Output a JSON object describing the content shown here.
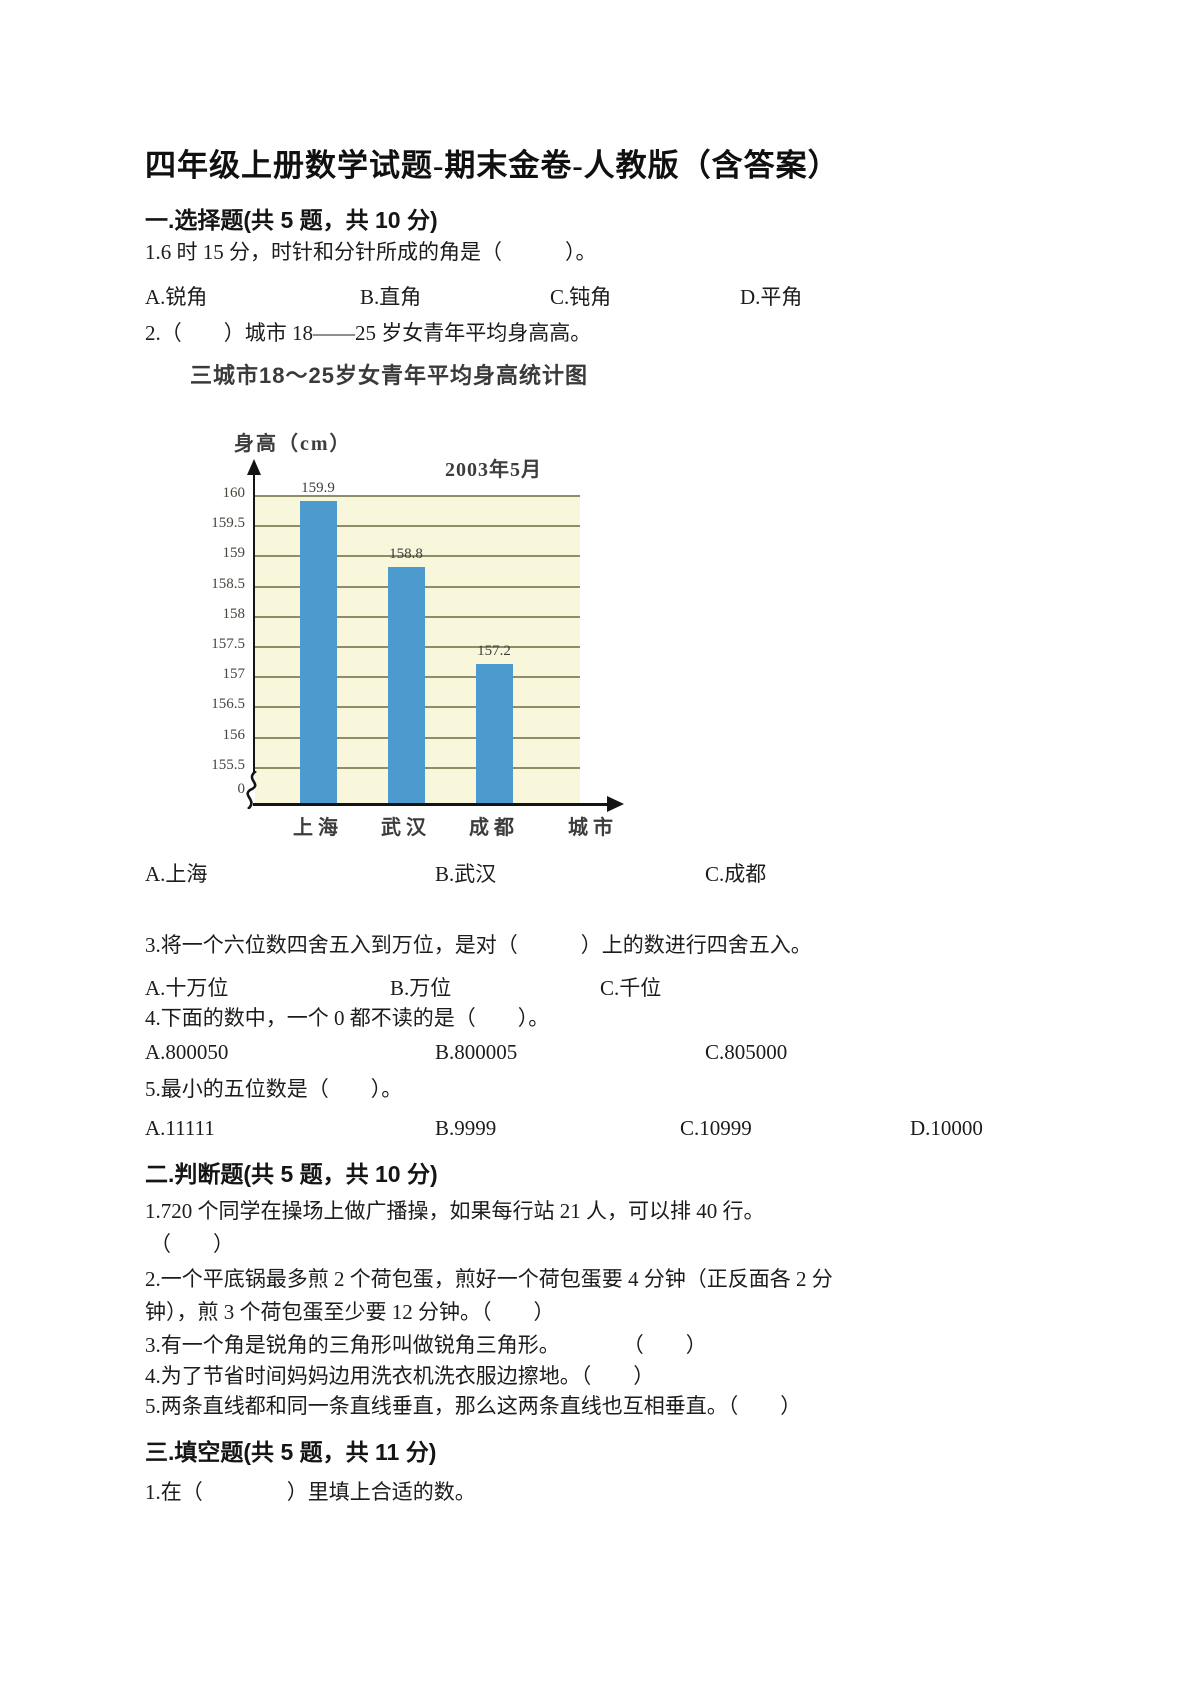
{
  "doc": {
    "title": "四年级上册数学试题-期末金卷-人教版（含答案）",
    "s1": {
      "heading": "一.选择题(共 5 题，共 10 分)",
      "q1": {
        "text": "1.6 时 15 分，时针和分针所成的角是（　　　）。",
        "options": [
          "A.锐角",
          "B.直角",
          "C.钝角",
          "D.平角"
        ]
      },
      "q2": {
        "text": "2.（　　）城市 18——25 岁女青年平均身高高。",
        "options": [
          "A.上海",
          "B.武汉",
          "C.成都"
        ]
      },
      "q3": {
        "text": "3.将一个六位数四舍五入到万位，是对（　　　）上的数进行四舍五入。",
        "options": [
          "A.十万位",
          "B.万位",
          "C.千位"
        ]
      },
      "q4": {
        "text": "4.下面的数中，一个 0 都不读的是（　　）。",
        "options": [
          "A.800050",
          "B.800005",
          "C.805000"
        ]
      },
      "q5": {
        "text": "5.最小的五位数是（　　）。",
        "options": [
          "A.11111",
          "B.9999",
          "C.10999",
          "D.10000"
        ]
      }
    },
    "s2": {
      "heading": "二.判断题(共 5 题，共 10 分)",
      "q1": "1.720 个同学在操场上做广播操，如果每行站 21 人，可以排 40 行。",
      "q1_bracket": "（　　）",
      "q2_line1": "2.一个平底锅最多煎 2 个荷包蛋，煎好一个荷包蛋要 4 分钟（正反面各 2 分",
      "q2_line2": "钟），煎 3 个荷包蛋至少要 12 分钟。（　　）",
      "q3": "3.有一个角是锐角的三角形叫做锐角三角形。　　　　（　　）",
      "q4": "4.为了节省时间妈妈边用洗衣机洗衣服边擦地。（　　）",
      "q5": "5.两条直线都和同一条直线垂直，那么这两条直线也互相垂直。（　　）"
    },
    "s3": {
      "heading": "三.填空题(共 5 题，共 11 分)",
      "q1": "1.在（　　　　）里填上合适的数。"
    }
  },
  "chart_data": {
    "type": "bar",
    "title": "三城市18～25岁女青年平均身高统计图",
    "annotation": "2003年5月",
    "ylabel": "身高（cm）",
    "xlabel": "城市",
    "categories": [
      "上海",
      "武汉",
      "成都"
    ],
    "values": [
      159.9,
      158.8,
      157.2
    ],
    "value_labels": [
      "159.9",
      "158.8",
      "157.2"
    ],
    "ytick_labels": [
      "160",
      "159.5",
      "159",
      "158.5",
      "158",
      "157.5",
      "157",
      "156.5",
      "156",
      "155.5",
      "0"
    ],
    "ytick_interval": 0.5,
    "ylim_display": [
      155.5,
      160
    ],
    "axis_break": true,
    "grid": true,
    "legend": "none",
    "colors": {
      "bar": "#4d9bce",
      "plot_bg": "#f8f7dc",
      "gridline": "#8d8d68",
      "axis": "#141414",
      "text": "#3d3d3d"
    }
  }
}
